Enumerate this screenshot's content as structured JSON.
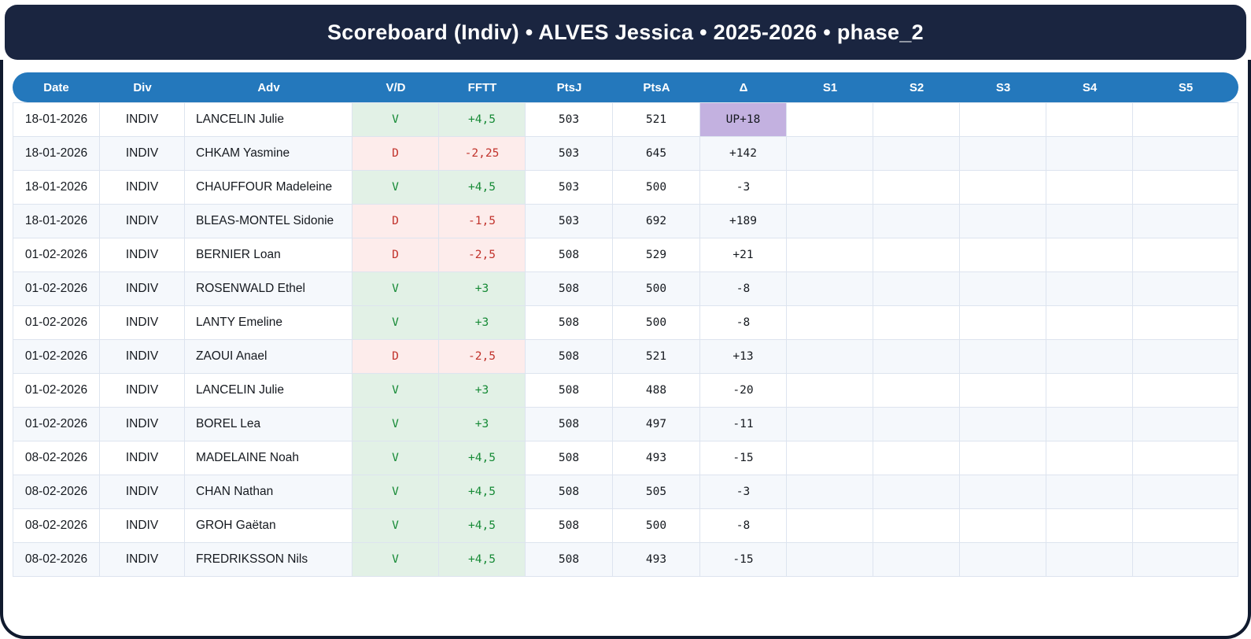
{
  "app": {
    "title": "Scoreboard (Indiv) • ALVES Jessica • 2025-2026 • phase_2"
  },
  "table": {
    "columns": [
      "Date",
      "Div",
      "Adv",
      "V/D",
      "FFTT",
      "PtsJ",
      "PtsA",
      "Δ",
      "S1",
      "S2",
      "S3",
      "S4",
      "S5"
    ],
    "rows": [
      {
        "date": "18-01-2026",
        "div": "INDIV",
        "adv": "LANCELIN Julie",
        "vd": "V",
        "fftt": "+4,5",
        "ptsj": "503",
        "ptsa": "521",
        "delta": "UP+18",
        "delta_highlight": true,
        "sets": [
          "",
          "",
          "",
          "",
          ""
        ]
      },
      {
        "date": "18-01-2026",
        "div": "INDIV",
        "adv": "CHKAM Yasmine",
        "vd": "D",
        "fftt": "-2,25",
        "ptsj": "503",
        "ptsa": "645",
        "delta": "+142",
        "delta_highlight": false,
        "sets": [
          "",
          "",
          "",
          "",
          ""
        ]
      },
      {
        "date": "18-01-2026",
        "div": "INDIV",
        "adv": "CHAUFFOUR Madeleine",
        "vd": "V",
        "fftt": "+4,5",
        "ptsj": "503",
        "ptsa": "500",
        "delta": "-3",
        "delta_highlight": false,
        "sets": [
          "",
          "",
          "",
          "",
          ""
        ]
      },
      {
        "date": "18-01-2026",
        "div": "INDIV",
        "adv": "BLEAS-MONTEL Sidonie",
        "vd": "D",
        "fftt": "-1,5",
        "ptsj": "503",
        "ptsa": "692",
        "delta": "+189",
        "delta_highlight": false,
        "sets": [
          "",
          "",
          "",
          "",
          ""
        ]
      },
      {
        "date": "01-02-2026",
        "div": "INDIV",
        "adv": "BERNIER Loan",
        "vd": "D",
        "fftt": "-2,5",
        "ptsj": "508",
        "ptsa": "529",
        "delta": "+21",
        "delta_highlight": false,
        "sets": [
          "",
          "",
          "",
          "",
          ""
        ]
      },
      {
        "date": "01-02-2026",
        "div": "INDIV",
        "adv": "ROSENWALD Ethel",
        "vd": "V",
        "fftt": "+3",
        "ptsj": "508",
        "ptsa": "500",
        "delta": "-8",
        "delta_highlight": false,
        "sets": [
          "",
          "",
          "",
          "",
          ""
        ]
      },
      {
        "date": "01-02-2026",
        "div": "INDIV",
        "adv": "LANTY Emeline",
        "vd": "V",
        "fftt": "+3",
        "ptsj": "508",
        "ptsa": "500",
        "delta": "-8",
        "delta_highlight": false,
        "sets": [
          "",
          "",
          "",
          "",
          ""
        ]
      },
      {
        "date": "01-02-2026",
        "div": "INDIV",
        "adv": "ZAOUI Anael",
        "vd": "D",
        "fftt": "-2,5",
        "ptsj": "508",
        "ptsa": "521",
        "delta": "+13",
        "delta_highlight": false,
        "sets": [
          "",
          "",
          "",
          "",
          ""
        ]
      },
      {
        "date": "01-02-2026",
        "div": "INDIV",
        "adv": "LANCELIN Julie",
        "vd": "V",
        "fftt": "+3",
        "ptsj": "508",
        "ptsa": "488",
        "delta": "-20",
        "delta_highlight": false,
        "sets": [
          "",
          "",
          "",
          "",
          ""
        ]
      },
      {
        "date": "01-02-2026",
        "div": "INDIV",
        "adv": "BOREL Lea",
        "vd": "V",
        "fftt": "+3",
        "ptsj": "508",
        "ptsa": "497",
        "delta": "-11",
        "delta_highlight": false,
        "sets": [
          "",
          "",
          "",
          "",
          ""
        ]
      },
      {
        "date": "08-02-2026",
        "div": "INDIV",
        "adv": "MADELAINE Noah",
        "vd": "V",
        "fftt": "+4,5",
        "ptsj": "508",
        "ptsa": "493",
        "delta": "-15",
        "delta_highlight": false,
        "sets": [
          "",
          "",
          "",
          "",
          ""
        ]
      },
      {
        "date": "08-02-2026",
        "div": "INDIV",
        "adv": "CHAN Nathan",
        "vd": "V",
        "fftt": "+4,5",
        "ptsj": "508",
        "ptsa": "505",
        "delta": "-3",
        "delta_highlight": false,
        "sets": [
          "",
          "",
          "",
          "",
          ""
        ]
      },
      {
        "date": "08-02-2026",
        "div": "INDIV",
        "adv": "GROH Gaëtan",
        "vd": "V",
        "fftt": "+4,5",
        "ptsj": "508",
        "ptsa": "500",
        "delta": "-8",
        "delta_highlight": false,
        "sets": [
          "",
          "",
          "",
          "",
          ""
        ]
      },
      {
        "date": "08-02-2026",
        "div": "INDIV",
        "adv": "FREDRIKSSON Nils",
        "vd": "V",
        "fftt": "+4,5",
        "ptsj": "508",
        "ptsa": "493",
        "delta": "-15",
        "delta_highlight": false,
        "sets": [
          "",
          "",
          "",
          "",
          ""
        ]
      }
    ]
  },
  "colors": {
    "titlebar_bg": "#1a2540",
    "frame_border": "#101a2e",
    "header_bg": "#2478bc",
    "header_text": "#ffffff",
    "win_bg": "#e2f1e6",
    "win_text": "#168a36",
    "loss_bg": "#fdeceb",
    "loss_text": "#c1322b",
    "delta_highlight_bg": "#c3b1e0",
    "row_alt_bg": "#f5f8fc",
    "grid_line": "#dde4ef"
  }
}
